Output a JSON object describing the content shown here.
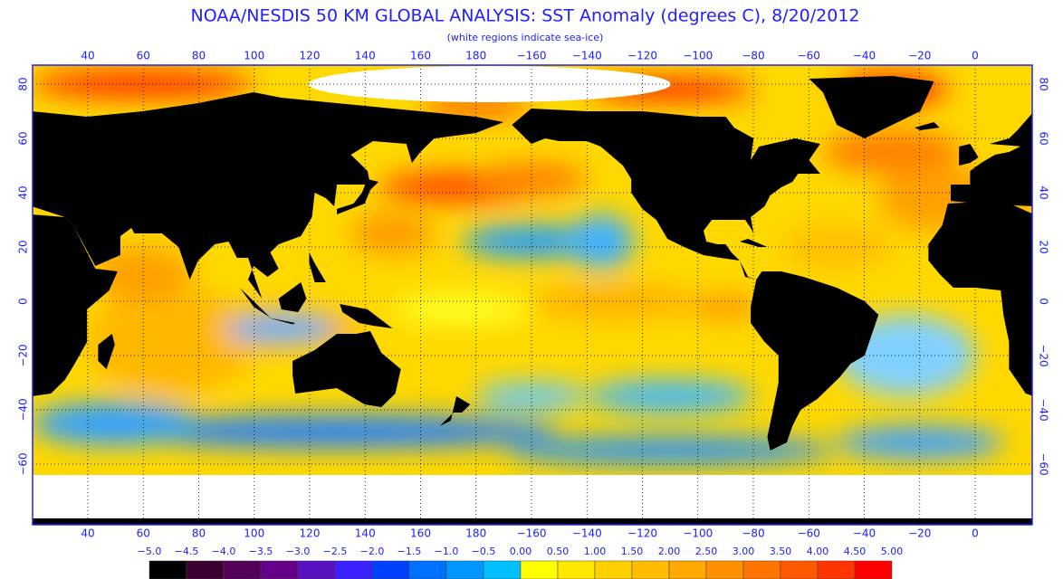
{
  "header": {
    "title": "NOAA/NESDIS 50 KM GLOBAL ANALYSIS: SST Anomaly (degrees C), 8/20/2012",
    "subtitle": "(white regions indicate sea-ice)"
  },
  "map": {
    "longitude_labels": [
      "40",
      "60",
      "80",
      "100",
      "120",
      "140",
      "160",
      "180",
      "−160",
      "−140",
      "−120",
      "−100",
      "−80",
      "−60",
      "−40",
      "−20",
      "0"
    ],
    "latitude_labels": [
      "80",
      "60",
      "40",
      "20",
      "0",
      "−20",
      "−40",
      "−60"
    ]
  },
  "legend": {
    "labels": [
      "−5.0",
      "−4.5",
      "−4.0",
      "−3.5",
      "−3.0",
      "−2.5",
      "−2.0",
      "−1.5",
      "−1.0",
      "−0.5",
      "0.00",
      "0.50",
      "1.00",
      "1.50",
      "2.00",
      "2.50",
      "3.00",
      "3.50",
      "4.00",
      "4.50",
      "5.00"
    ],
    "colors": [
      "#000000",
      "#3a0030",
      "#520058",
      "#660088",
      "#5a10c0",
      "#3a20ff",
      "#0040ff",
      "#0070ff",
      "#0098ff",
      "#00c0ff",
      "#ffff00",
      "#ffe800",
      "#ffd000",
      "#ffbc00",
      "#ffa800",
      "#ff9000",
      "#ff7400",
      "#ff5800",
      "#ff3400",
      "#ff0000"
    ]
  }
}
